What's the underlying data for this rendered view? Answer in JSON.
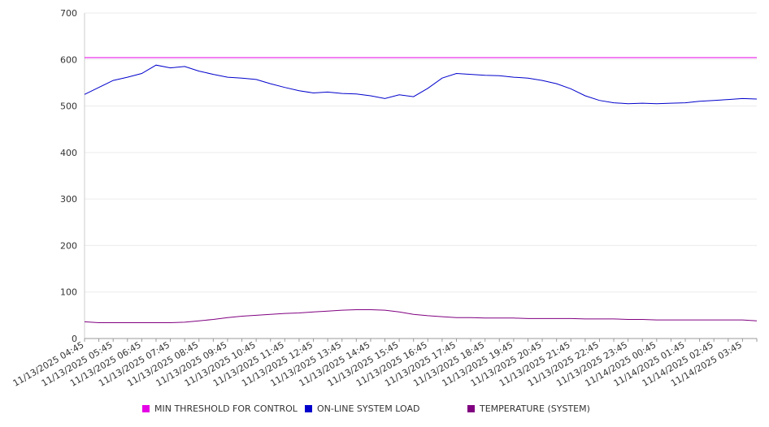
{
  "chart_data": {
    "type": "line",
    "title": "",
    "xlabel": "",
    "ylabel": "",
    "ylim": [
      0,
      700
    ],
    "yticks": [
      0,
      100,
      200,
      300,
      400,
      500,
      600,
      700
    ],
    "grid": true,
    "legend_position": "bottom",
    "x_tick_labels": [
      "11/13/2025 04:45",
      "11/13/2025 05:45",
      "11/13/2025 06:45",
      "11/13/2025 07:45",
      "11/13/2025 08:45",
      "11/13/2025 09:45",
      "11/13/2025 10:45",
      "11/13/2025 11:45",
      "11/13/2025 12:45",
      "11/13/2025 13:45",
      "11/13/2025 14:45",
      "11/13/2025 15:45",
      "11/13/2025 16:45",
      "11/13/2025 17:45",
      "11/13/2025 18:45",
      "11/13/2025 19:45",
      "11/13/2025 20:45",
      "11/13/2025 21:45",
      "11/13/2025 22:45",
      "11/13/2025 23:45",
      "11/14/2025 00:45",
      "11/14/2025 01:45",
      "11/14/2025 02:45",
      "11/14/2025 03:45"
    ],
    "x": [
      "04:45",
      "05:15",
      "05:45",
      "06:15",
      "06:45",
      "07:15",
      "07:45",
      "08:15",
      "08:45",
      "09:15",
      "09:45",
      "10:15",
      "10:45",
      "11:15",
      "11:45",
      "12:15",
      "12:45",
      "13:15",
      "13:45",
      "14:15",
      "14:45",
      "15:15",
      "15:45",
      "16:15",
      "16:45",
      "17:15",
      "17:45",
      "18:15",
      "18:45",
      "19:15",
      "19:45",
      "20:15",
      "20:45",
      "21:15",
      "21:45",
      "22:15",
      "22:45",
      "23:15",
      "23:45",
      "00:15",
      "00:45",
      "01:15",
      "01:45",
      "02:15",
      "02:45",
      "03:15",
      "03:45",
      "04:15"
    ],
    "series": [
      {
        "name": "MIN THRESHOLD FOR CONTROL",
        "color": "#e500e5",
        "values": [
          604,
          604,
          604,
          604,
          604,
          604,
          604,
          604,
          604,
          604,
          604,
          604,
          604,
          604,
          604,
          604,
          604,
          604,
          604,
          604,
          604,
          604,
          604,
          604,
          604,
          604,
          604,
          604,
          604,
          604,
          604,
          604,
          604,
          604,
          604,
          604,
          604,
          604,
          604,
          604,
          604,
          604,
          604,
          604,
          604,
          604,
          604,
          604
        ]
      },
      {
        "name": "ON-LINE SYSTEM LOAD",
        "color": "#0000cc",
        "values": [
          525,
          540,
          555,
          562,
          570,
          588,
          582,
          585,
          575,
          568,
          562,
          560,
          557,
          548,
          540,
          533,
          528,
          530,
          527,
          526,
          522,
          516,
          524,
          520,
          538,
          560,
          570,
          568,
          566,
          565,
          562,
          560,
          555,
          548,
          537,
          522,
          512,
          507,
          505,
          506,
          505,
          506,
          507,
          510,
          512,
          514,
          516,
          515
        ]
      },
      {
        "name": "TEMPERATURE (SYSTEM)",
        "color": "#800080",
        "values": [
          36,
          34,
          34,
          34,
          34,
          34,
          34,
          35,
          38,
          41,
          45,
          48,
          50,
          52,
          54,
          55,
          57,
          59,
          61,
          62,
          62,
          61,
          57,
          52,
          49,
          47,
          45,
          45,
          44,
          44,
          44,
          43,
          43,
          43,
          43,
          42,
          42,
          42,
          41,
          41,
          40,
          40,
          40,
          40,
          40,
          40,
          40,
          38
        ]
      }
    ]
  }
}
